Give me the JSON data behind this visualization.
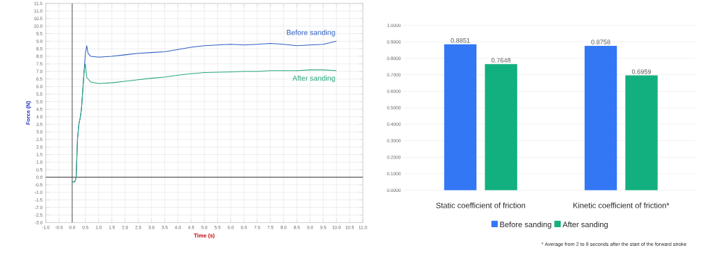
{
  "chart_data": [
    {
      "type": "line",
      "xlabel": "Time (s)",
      "ylabel": "Force (N)",
      "grid": true,
      "legend": false,
      "xlim": [
        -1.0,
        11.0
      ],
      "ylim": [
        -3.0,
        11.5
      ],
      "xticks": [
        {
          "value": -1.0,
          "label": "-1.0"
        },
        {
          "value": -0.5,
          "label": "-0.5"
        },
        {
          "value": 0,
          "label": "0.0"
        },
        {
          "value": 0.5,
          "label": "0.5"
        },
        {
          "value": 1,
          "label": "1.0"
        },
        {
          "value": 1.5,
          "label": "1.5"
        },
        {
          "value": 2,
          "label": "2.0"
        },
        {
          "value": 2.5,
          "label": "2.5"
        },
        {
          "value": 3,
          "label": "3.0"
        },
        {
          "value": 3.5,
          "label": "3.5"
        },
        {
          "value": 4,
          "label": "4.0"
        },
        {
          "value": 4.5,
          "label": "4.5"
        },
        {
          "value": 5,
          "label": "5.0"
        },
        {
          "value": 5.5,
          "label": "5.5"
        },
        {
          "value": 6,
          "label": "6.0"
        },
        {
          "value": 6.5,
          "label": "6.5"
        },
        {
          "value": 7,
          "label": "7.0"
        },
        {
          "value": 7.5,
          "label": "7.5"
        },
        {
          "value": 8,
          "label": "8.0"
        },
        {
          "value": 8.5,
          "label": "8.5"
        },
        {
          "value": 9,
          "label": "9.0"
        },
        {
          "value": 9.5,
          "label": "9.5"
        },
        {
          "value": 10,
          "label": "10.0"
        },
        {
          "value": 10.5,
          "label": "10.5"
        },
        {
          "value": 11,
          "label": "11.0"
        }
      ],
      "yticks": [
        {
          "value": -3.0,
          "label": "-3.0"
        },
        {
          "value": -2.5,
          "label": "-2.5"
        },
        {
          "value": -2.0,
          "label": "-2.0"
        },
        {
          "value": -1.5,
          "label": "-1.5"
        },
        {
          "value": -1.0,
          "label": "-1.0"
        },
        {
          "value": -0.5,
          "label": "-0.5"
        },
        {
          "value": 0,
          "label": "0.0"
        },
        {
          "value": 0.5,
          "label": "0.5"
        },
        {
          "value": 1,
          "label": "1.0"
        },
        {
          "value": 1.5,
          "label": "1.5"
        },
        {
          "value": 2,
          "label": "2.0"
        },
        {
          "value": 2.5,
          "label": "2.5"
        },
        {
          "value": 3,
          "label": "3.0"
        },
        {
          "value": 3.5,
          "label": "3.5"
        },
        {
          "value": 4,
          "label": "4.0"
        },
        {
          "value": 4.5,
          "label": "4.5"
        },
        {
          "value": 5,
          "label": "5.0"
        },
        {
          "value": 5.5,
          "label": "5.5"
        },
        {
          "value": 6,
          "label": "6.0"
        },
        {
          "value": 6.5,
          "label": "6.5"
        },
        {
          "value": 7,
          "label": "7.0"
        },
        {
          "value": 7.5,
          "label": "7.5"
        },
        {
          "value": 8,
          "label": "8.0"
        },
        {
          "value": 8.5,
          "label": "8.5"
        },
        {
          "value": 9,
          "label": "9.0"
        },
        {
          "value": 9.5,
          "label": "9.5"
        },
        {
          "value": 10,
          "label": "10.0"
        },
        {
          "value": 10.5,
          "label": "10.5"
        },
        {
          "value": 11,
          "label": "11.0"
        },
        {
          "value": 11.5,
          "label": "11.5"
        }
      ],
      "series": [
        {
          "name": "Before sanding",
          "color": "#2f5fc4",
          "x": [
            0,
            0.1,
            0.15,
            0.2,
            0.25,
            0.3,
            0.35,
            0.45,
            0.5,
            0.55,
            0.6,
            0.7,
            1.0,
            1.5,
            2.0,
            2.5,
            3.0,
            3.5,
            4.0,
            4.5,
            5.0,
            5.5,
            6.0,
            6.5,
            7.0,
            7.5,
            8.0,
            8.5,
            9.0,
            9.5,
            10.0
          ],
          "values": [
            -0.3,
            -0.3,
            0.0,
            2.5,
            3.5,
            3.9,
            4.5,
            7.0,
            8.2,
            8.7,
            8.2,
            8.0,
            7.95,
            8.0,
            8.1,
            8.2,
            8.25,
            8.3,
            8.45,
            8.6,
            8.7,
            8.75,
            8.8,
            8.75,
            8.8,
            8.85,
            8.8,
            8.7,
            8.75,
            8.8,
            9.0
          ]
        },
        {
          "name": "After sanding",
          "color": "#2aa87a",
          "x": [
            0,
            0.1,
            0.15,
            0.2,
            0.25,
            0.3,
            0.35,
            0.45,
            0.5,
            0.55,
            0.7,
            1.0,
            1.5,
            2.0,
            2.5,
            3.0,
            3.5,
            4.0,
            4.5,
            5.0,
            5.5,
            6.0,
            6.5,
            7.0,
            7.5,
            8.0,
            8.5,
            9.0,
            9.5,
            10.0
          ],
          "values": [
            -0.3,
            -0.3,
            0.0,
            2.5,
            3.5,
            3.9,
            4.5,
            7.0,
            7.5,
            6.6,
            6.3,
            6.2,
            6.25,
            6.35,
            6.45,
            6.55,
            6.62,
            6.75,
            6.85,
            6.92,
            6.95,
            6.97,
            7.0,
            7.0,
            7.05,
            7.05,
            7.05,
            7.1,
            7.1,
            7.05
          ]
        }
      ]
    },
    {
      "type": "bar",
      "categories": [
        "Static coefficient of friction",
        "Kinetic coefficient of friction*"
      ],
      "grid": "y",
      "legend": "bottom",
      "ylim": [
        0,
        1.0
      ],
      "yticks": [
        {
          "value": 0,
          "label": "0.0000"
        },
        {
          "value": 0.1,
          "label": "0.1000"
        },
        {
          "value": 0.2,
          "label": "0.2000"
        },
        {
          "value": 0.3,
          "label": "0.3000"
        },
        {
          "value": 0.4,
          "label": "0.4000"
        },
        {
          "value": 0.5,
          "label": "0.5000"
        },
        {
          "value": 0.6,
          "label": "0.6000"
        },
        {
          "value": 0.7,
          "label": "0.7000"
        },
        {
          "value": 0.8,
          "label": "0.8000"
        },
        {
          "value": 0.9,
          "label": "0.9000"
        },
        {
          "value": 1.0,
          "label": "1.0000"
        }
      ],
      "series": [
        {
          "name": "Before sanding",
          "color": "#3377f5",
          "values": [
            0.8851,
            0.8758
          ],
          "value_labels": [
            "0.8851",
            "0.8758"
          ]
        },
        {
          "name": "After sanding",
          "color": "#13b07f",
          "values": [
            0.7648,
            0.6959
          ],
          "value_labels": [
            "0.7648",
            "0.6959"
          ]
        }
      ],
      "annotations": [
        "* Average from 2 to 8 seconds after the start of the forward stroke"
      ]
    }
  ]
}
